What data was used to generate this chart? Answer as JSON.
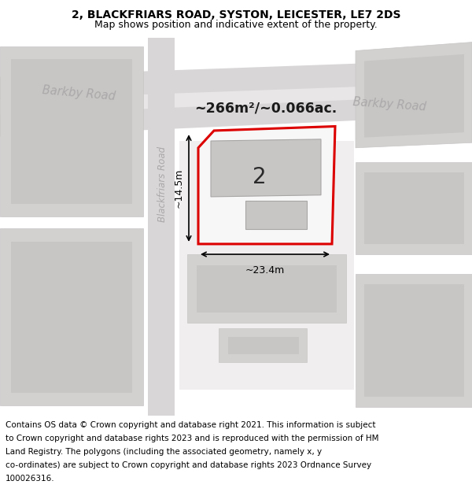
{
  "title_line1": "2, BLACKFRIARS ROAD, SYSTON, LEICESTER, LE7 2DS",
  "title_line2": "Map shows position and indicative extent of the property.",
  "footer_text": "Contains OS data © Crown copyright and database right 2021. This information is subject to Crown copyright and database rights 2023 and is reproduced with the permission of HM Land Registry. The polygons (including the associated geometry, namely x, y co-ordinates) are subject to Crown copyright and database rights 2023 Ordnance Survey 100026316.",
  "area_text": "~266m²/~0.066ac.",
  "house_number": "2",
  "dim_width": "~23.4m",
  "dim_height": "~14.5m",
  "road_label_1": "Barkby Road",
  "road_label_2": "Barkby Road",
  "road_label_3": "Blackfriars Road",
  "map_bg": "#f0eeee",
  "road_color": "#d8d6d6",
  "building_outer": "#d3d0d0",
  "building_inner": "#c8c5c5",
  "property_fill": "#f8f7f7",
  "property_edge": "#dd0000",
  "road_label_color": "#aaa8a8",
  "title_fontsize": 10,
  "subtitle_fontsize": 9,
  "footer_fontsize": 7.5
}
